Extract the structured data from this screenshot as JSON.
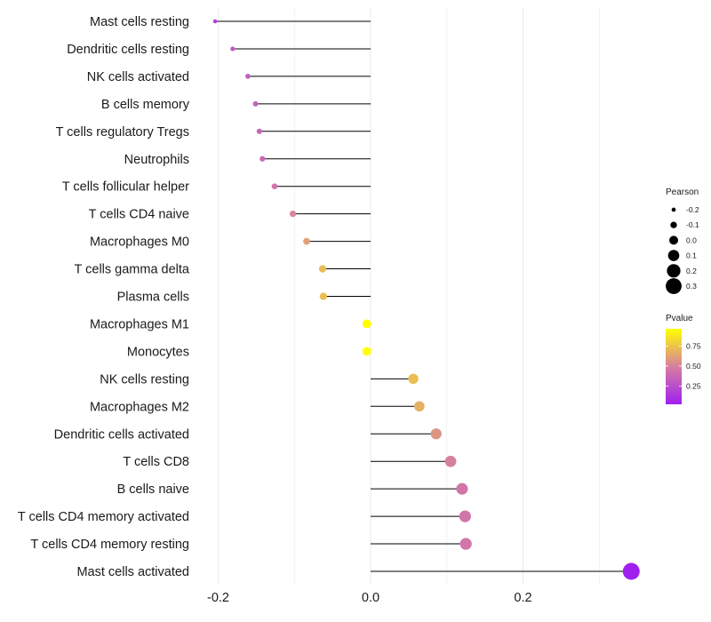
{
  "chart_data": {
    "type": "lollipop",
    "title": "",
    "xlabel": "",
    "ylabel": "",
    "xlim": [
      -0.205,
      0.34
    ],
    "xticks": [
      -0.2,
      0.0,
      0.2
    ],
    "xtick_labels": [
      "-0.2",
      "0.0",
      "0.2"
    ],
    "grid": true,
    "categories": [
      "Mast cells resting",
      "Dendritic cells resting",
      "NK cells activated",
      "B cells memory",
      "T cells regulatory  Tregs",
      "Neutrophils",
      "T cells follicular helper",
      "T cells CD4 naive",
      "Macrophages M0",
      "T cells gamma delta",
      "Plasma cells",
      "Macrophages M1",
      "Monocytes",
      "NK cells resting",
      "Macrophages M2",
      "Dendritic cells activated",
      "T cells CD8",
      "B cells naive",
      "T cells CD4 memory activated",
      "T cells CD4 memory resting",
      "Mast cells activated"
    ],
    "pearson": [
      -0.204,
      -0.181,
      -0.161,
      -0.151,
      -0.146,
      -0.142,
      -0.126,
      -0.102,
      -0.084,
      -0.063,
      -0.062,
      -0.005,
      -0.005,
      0.056,
      0.064,
      0.086,
      0.105,
      0.12,
      0.124,
      0.125,
      0.342
    ],
    "pvalue": [
      0.17,
      0.3,
      0.33,
      0.36,
      0.37,
      0.38,
      0.44,
      0.52,
      0.62,
      0.72,
      0.73,
      0.97,
      0.97,
      0.73,
      0.68,
      0.58,
      0.5,
      0.45,
      0.45,
      0.45,
      0.02
    ],
    "legend": {
      "size_title": "Pearson",
      "size_values": [
        -0.2,
        -0.1,
        0.0,
        0.1,
        0.2,
        0.3
      ],
      "size_labels": [
        "-0.2",
        "-0.1",
        "0.0",
        "0.1",
        "0.2",
        "0.3"
      ],
      "color_title": "Pvalue",
      "color_range": [
        0.02,
        0.97
      ],
      "color_ticks": [
        0.25,
        0.5,
        0.75
      ],
      "color_tick_labels": [
        "0.25",
        "0.50",
        "0.75"
      ],
      "placement": "right"
    },
    "colors": {
      "low": "#a020f0",
      "mid": "#d67fa0",
      "high": "#ffff00",
      "segment": "#000000",
      "grid": "#ebebeb"
    }
  }
}
